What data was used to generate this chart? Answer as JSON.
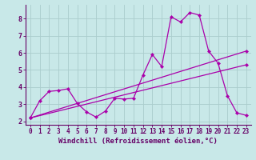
{
  "xlabel": "Windchill (Refroidissement éolien,°C)",
  "bg_color": "#c8e8e8",
  "grid_color": "#aacccc",
  "line_color": "#aa00aa",
  "axis_color": "#660066",
  "xlim": [
    -0.5,
    23.5
  ],
  "ylim": [
    1.8,
    8.8
  ],
  "xticks": [
    0,
    1,
    2,
    3,
    4,
    5,
    6,
    7,
    8,
    9,
    10,
    11,
    12,
    13,
    14,
    15,
    16,
    17,
    18,
    19,
    20,
    21,
    22,
    23
  ],
  "yticks": [
    2,
    3,
    4,
    5,
    6,
    7,
    8
  ],
  "line1_x": [
    0,
    1,
    2,
    3,
    4,
    5,
    6,
    7,
    8,
    9,
    10,
    11,
    12,
    13,
    14,
    15,
    16,
    17,
    18,
    19,
    20,
    21,
    22,
    23
  ],
  "line1_y": [
    2.2,
    3.2,
    3.75,
    3.8,
    3.9,
    3.05,
    2.55,
    2.25,
    2.6,
    3.35,
    3.3,
    3.35,
    4.7,
    5.9,
    5.2,
    8.1,
    7.8,
    8.35,
    8.2,
    6.1,
    5.4,
    3.5,
    2.5,
    2.35
  ],
  "line2_x": [
    0,
    23
  ],
  "line2_y": [
    2.2,
    6.1
  ],
  "line3_x": [
    0,
    23
  ],
  "line3_y": [
    2.2,
    5.3
  ],
  "tick_fontsize": 5.5,
  "label_fontsize": 6.5
}
